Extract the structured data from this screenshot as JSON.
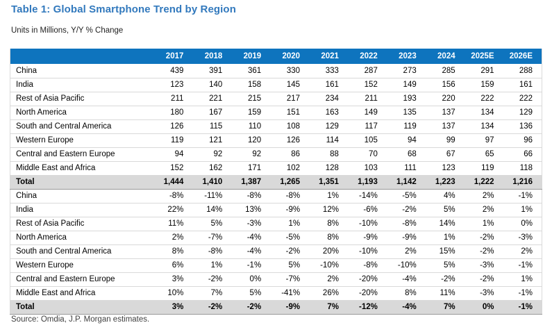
{
  "header": {
    "title": "Table 1: Global Smartphone Trend by Region",
    "subtitle": "Units in Millions, Y/Y % Change"
  },
  "table": {
    "label_column_header": "",
    "columns": [
      "2017",
      "2018",
      "2019",
      "2020",
      "2021",
      "2022",
      "2023",
      "2024",
      "2025E",
      "2026E"
    ],
    "sections": [
      {
        "name": "units-in-millions",
        "rows": [
          {
            "label": "China",
            "values": [
              "439",
              "391",
              "361",
              "330",
              "333",
              "287",
              "273",
              "285",
              "291",
              "288"
            ]
          },
          {
            "label": "India",
            "values": [
              "123",
              "140",
              "158",
              "145",
              "161",
              "152",
              "149",
              "156",
              "159",
              "161"
            ]
          },
          {
            "label": "Rest of Asia Pacific",
            "values": [
              "211",
              "221",
              "215",
              "217",
              "234",
              "211",
              "193",
              "220",
              "222",
              "222"
            ]
          },
          {
            "label": "North America",
            "values": [
              "180",
              "167",
              "159",
              "151",
              "163",
              "149",
              "135",
              "137",
              "134",
              "129"
            ]
          },
          {
            "label": "South and Central America",
            "values": [
              "126",
              "115",
              "110",
              "108",
              "129",
              "117",
              "119",
              "137",
              "134",
              "136"
            ]
          },
          {
            "label": "Western Europe",
            "values": [
              "119",
              "121",
              "120",
              "126",
              "114",
              "105",
              "94",
              "99",
              "97",
              "96"
            ]
          },
          {
            "label": "Central and Eastern Europe",
            "values": [
              "94",
              "92",
              "92",
              "86",
              "88",
              "70",
              "68",
              "67",
              "65",
              "66"
            ]
          },
          {
            "label": "Middle East and Africa",
            "values": [
              "152",
              "162",
              "171",
              "102",
              "128",
              "103",
              "111",
              "123",
              "119",
              "118"
            ]
          }
        ],
        "total": {
          "label": "Total",
          "values": [
            "1,444",
            "1,410",
            "1,387",
            "1,265",
            "1,351",
            "1,193",
            "1,142",
            "1,223",
            "1,222",
            "1,216"
          ]
        }
      },
      {
        "name": "yoy-percent-change",
        "rows": [
          {
            "label": "China",
            "values": [
              "-8%",
              "-11%",
              "-8%",
              "-8%",
              "1%",
              "-14%",
              "-5%",
              "4%",
              "2%",
              "-1%"
            ]
          },
          {
            "label": "India",
            "values": [
              "22%",
              "14%",
              "13%",
              "-9%",
              "12%",
              "-6%",
              "-2%",
              "5%",
              "2%",
              "1%"
            ]
          },
          {
            "label": "Rest of Asia Pacific",
            "values": [
              "11%",
              "5%",
              "-3%",
              "1%",
              "8%",
              "-10%",
              "-8%",
              "14%",
              "1%",
              "0%"
            ]
          },
          {
            "label": "North America",
            "values": [
              "2%",
              "-7%",
              "-4%",
              "-5%",
              "8%",
              "-9%",
              "-9%",
              "1%",
              "-2%",
              "-3%"
            ]
          },
          {
            "label": "South and Central America",
            "values": [
              "8%",
              "-8%",
              "-4%",
              "-2%",
              "20%",
              "-10%",
              "2%",
              "15%",
              "-2%",
              "2%"
            ]
          },
          {
            "label": "Western Europe",
            "values": [
              "6%",
              "1%",
              "-1%",
              "5%",
              "-10%",
              "-8%",
              "-10%",
              "5%",
              "-3%",
              "-1%"
            ]
          },
          {
            "label": "Central and Eastern Europe",
            "values": [
              "3%",
              "-2%",
              "0%",
              "-7%",
              "2%",
              "-20%",
              "-4%",
              "-2%",
              "-2%",
              "1%"
            ]
          },
          {
            "label": "Middle East and Africa",
            "values": [
              "10%",
              "7%",
              "5%",
              "-41%",
              "26%",
              "-20%",
              "8%",
              "11%",
              "-3%",
              "-1%"
            ]
          }
        ],
        "total": {
          "label": "Total",
          "values": [
            "3%",
            "-2%",
            "-2%",
            "-9%",
            "7%",
            "-12%",
            "-4%",
            "7%",
            "0%",
            "-1%"
          ]
        }
      }
    ]
  },
  "footer": {
    "source": "Source: Omdia, J.P. Morgan estimates."
  },
  "colors": {
    "title": "#3279bd",
    "header_bg": "#0e74be",
    "header_text": "#ffffff",
    "total_row_bg": "#d9d9d9",
    "row_border": "#d9d9d9",
    "total_row_border": "#9a9a9a",
    "source_text": "#404040"
  }
}
